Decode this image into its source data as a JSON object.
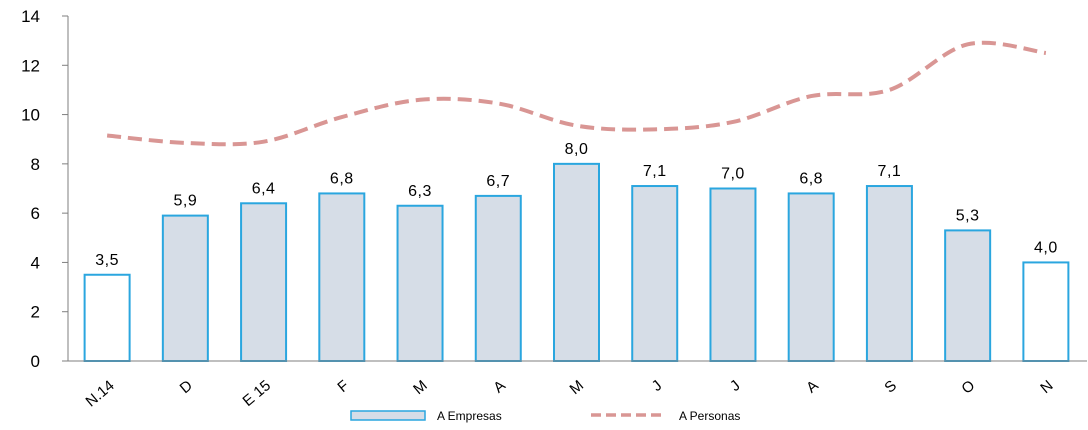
{
  "chart_data": {
    "type": "bar",
    "categories": [
      "N.14",
      "D",
      "E 15",
      "F",
      "M",
      "A",
      "M",
      "J",
      "J",
      "A",
      "S",
      "O",
      "N"
    ],
    "series": [
      {
        "name": "A Empresas",
        "kind": "bar",
        "values": [
          3.5,
          5.9,
          6.4,
          6.8,
          6.3,
          6.7,
          8.0,
          7.1,
          7.0,
          6.8,
          7.1,
          5.3,
          4.0
        ],
        "data_labels": [
          "3,5",
          "5,9",
          "6,4",
          "6,8",
          "6,3",
          "6,7",
          "8,0",
          "7,1",
          "7,0",
          "6,8",
          "7,1",
          "5,3",
          "4,0"
        ],
        "highlighted": [
          true,
          false,
          false,
          false,
          false,
          false,
          false,
          false,
          false,
          false,
          false,
          false,
          true
        ]
      },
      {
        "name": "A Personas",
        "kind": "line",
        "style": "dashed",
        "values": [
          9.15,
          8.85,
          8.9,
          9.9,
          10.6,
          10.45,
          9.55,
          9.4,
          9.7,
          10.75,
          11.0,
          12.85,
          12.5
        ]
      }
    ],
    "yticks": [
      "0",
      "2",
      "4",
      "6",
      "8",
      "10",
      "12",
      "14"
    ],
    "ylim": [
      0,
      14
    ],
    "grid": false,
    "legend_position": "bottom",
    "colors": {
      "bar_fill": "#d6dde7",
      "bar_fill_highlight": "#ffffff",
      "bar_stroke": "#2aa6df",
      "line": "#d99694",
      "axis": "#7f7f7f",
      "text": "#000000"
    }
  }
}
